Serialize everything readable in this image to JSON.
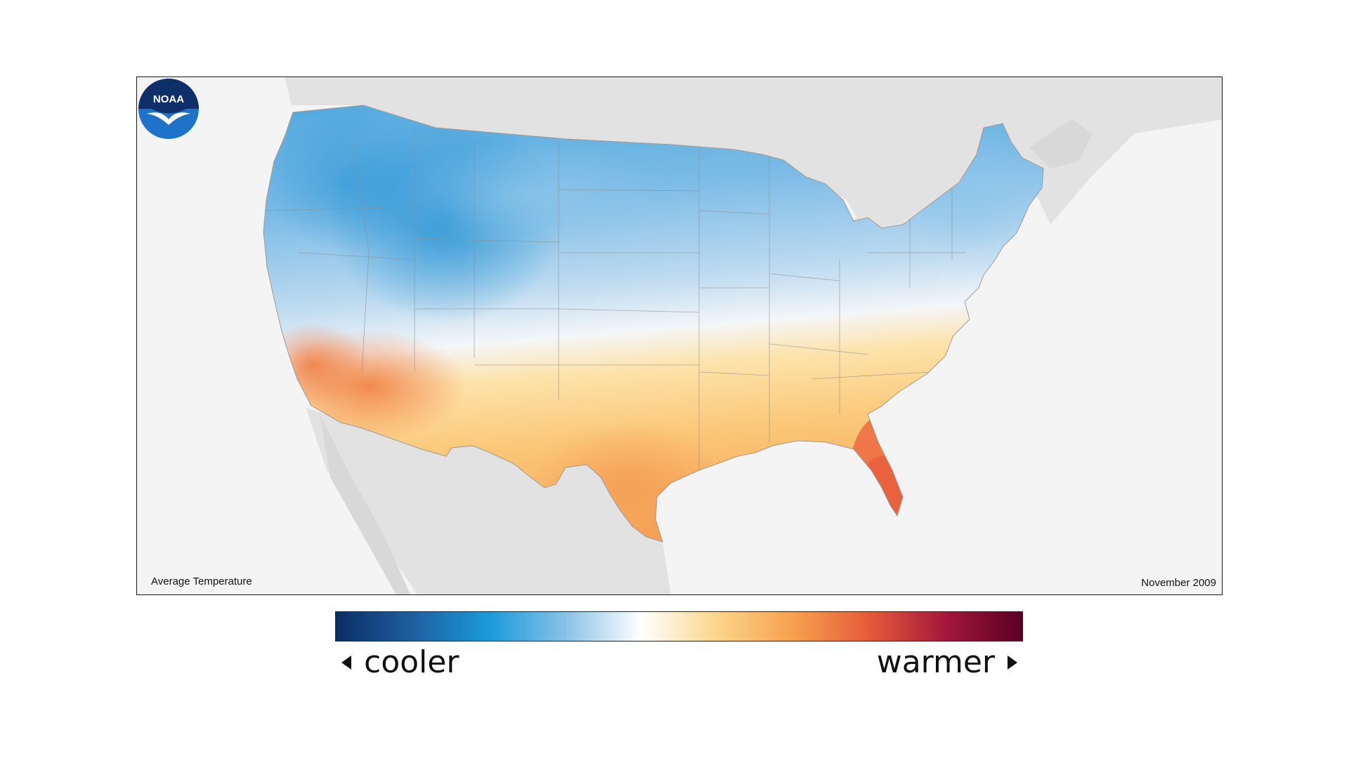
{
  "map": {
    "variable_label": "Average Temperature",
    "period_label": "November 2009",
    "logo_text": "NOAA",
    "region": "contiguous-united-states",
    "background_color": "#f4f4f4",
    "land_context_color": "#e2e2e2"
  },
  "legend": {
    "low_label": "cooler",
    "high_label": "warmer",
    "gradient_colors": [
      "#0a2e63",
      "#1f5fa0",
      "#1a9ad9",
      "#86c2e6",
      "#ffffff",
      "#fcd58c",
      "#f6a04d",
      "#e65a3a",
      "#a3173a",
      "#5a0026"
    ]
  },
  "anomaly_pattern": {
    "cooler_regions": [
      "northern-rockies",
      "pacific-northwest",
      "upper-midwest",
      "northeast"
    ],
    "warmer_regions": [
      "california",
      "arizona",
      "texas",
      "gulf-coast",
      "florida",
      "southeast"
    ],
    "warmest_region": "florida"
  }
}
